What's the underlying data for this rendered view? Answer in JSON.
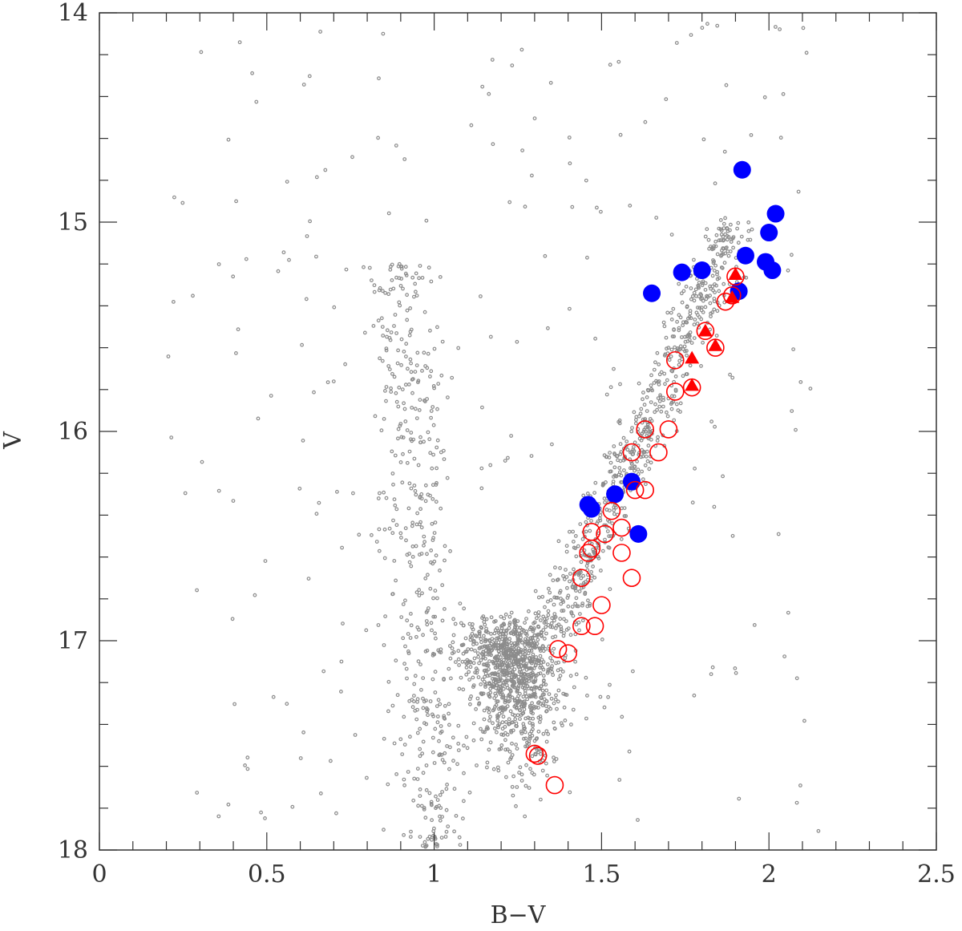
{
  "chart_data": {
    "type": "scatter",
    "title": "",
    "xlabel": "B−V",
    "ylabel": "V",
    "xlim": [
      0,
      2.5
    ],
    "ylim": [
      18,
      14
    ],
    "y_inverted": true,
    "x_major_ticks": [
      0,
      0.5,
      1,
      1.5,
      2,
      2.5
    ],
    "x_tick_labels": [
      "0",
      "0.5",
      "1",
      "1.5",
      "2",
      "2.5"
    ],
    "x_minor_step": 0.1,
    "y_major_ticks": [
      14,
      15,
      16,
      17,
      18
    ],
    "y_tick_labels": [
      "14",
      "15",
      "16",
      "17",
      "18"
    ],
    "y_minor_step": 0.2,
    "grid": false,
    "colors": {
      "field": "#8c8c8c",
      "blue": "#0000ff",
      "red": "#ff0000",
      "axis": "#333333"
    },
    "series": [
      {
        "name": "field stars",
        "marker": "small-open-circle",
        "color": "#8c8c8c",
        "generated_cloud": true,
        "approx_count": 2400
      },
      {
        "name": "blue filled circles",
        "marker": "filled-circle",
        "color": "#0000ff",
        "points": [
          [
            1.92,
            14.75
          ],
          [
            2.02,
            14.96
          ],
          [
            2.0,
            15.05
          ],
          [
            1.93,
            15.16
          ],
          [
            1.99,
            15.19
          ],
          [
            2.01,
            15.23
          ],
          [
            1.74,
            15.24
          ],
          [
            1.8,
            15.23
          ],
          [
            1.65,
            15.34
          ],
          [
            1.91,
            15.33
          ],
          [
            1.59,
            16.24
          ],
          [
            1.54,
            16.3
          ],
          [
            1.46,
            16.35
          ],
          [
            1.47,
            16.37
          ],
          [
            1.61,
            16.49
          ]
        ]
      },
      {
        "name": "red open circles",
        "marker": "open-circle",
        "color": "#ff0000",
        "points": [
          [
            1.9,
            15.26
          ],
          [
            1.89,
            15.35
          ],
          [
            1.87,
            15.38
          ],
          [
            1.81,
            15.52
          ],
          [
            1.84,
            15.6
          ],
          [
            1.72,
            15.66
          ],
          [
            1.72,
            15.81
          ],
          [
            1.77,
            15.79
          ],
          [
            1.7,
            15.99
          ],
          [
            1.63,
            15.99
          ],
          [
            1.59,
            16.1
          ],
          [
            1.67,
            16.1
          ],
          [
            1.6,
            16.28
          ],
          [
            1.63,
            16.28
          ],
          [
            1.53,
            16.38
          ],
          [
            1.56,
            16.46
          ],
          [
            1.47,
            16.48
          ],
          [
            1.51,
            16.49
          ],
          [
            1.46,
            16.58
          ],
          [
            1.47,
            16.56
          ],
          [
            1.56,
            16.58
          ],
          [
            1.44,
            16.7
          ],
          [
            1.59,
            16.7
          ],
          [
            1.5,
            16.83
          ],
          [
            1.44,
            16.93
          ],
          [
            1.48,
            16.93
          ],
          [
            1.37,
            17.04
          ],
          [
            1.4,
            17.06
          ],
          [
            1.3,
            17.54
          ],
          [
            1.31,
            17.55
          ],
          [
            1.36,
            17.69
          ]
        ]
      },
      {
        "name": "red filled triangles",
        "marker": "filled-triangle",
        "color": "#ff0000",
        "points": [
          [
            1.9,
            15.25
          ],
          [
            1.89,
            15.36
          ],
          [
            1.81,
            15.52
          ],
          [
            1.84,
            15.59
          ],
          [
            1.77,
            15.65
          ],
          [
            1.77,
            15.78
          ]
        ]
      }
    ]
  }
}
